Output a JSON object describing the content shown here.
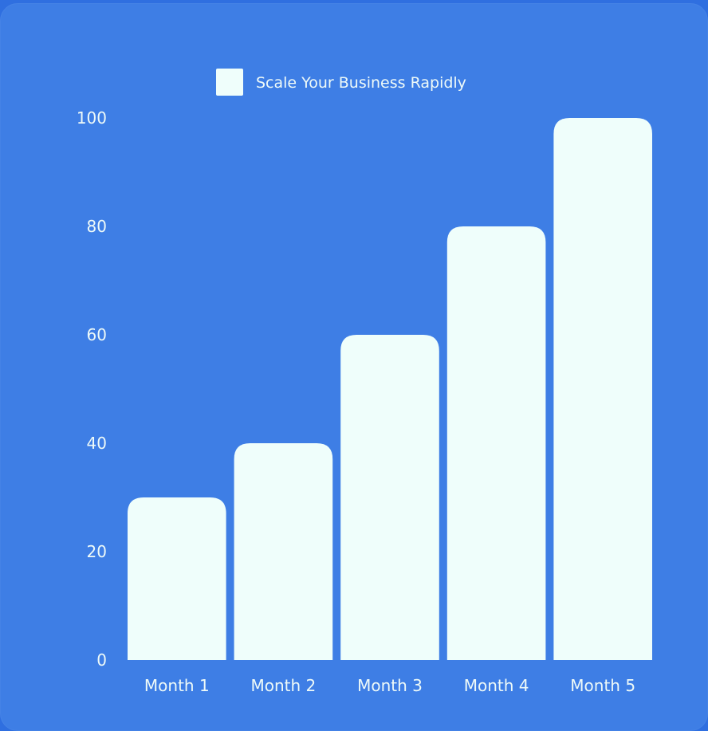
{
  "colors": {
    "page_background": "#2f6fe0",
    "card_background": "#3e7ee5",
    "bar_fill": "#effefb",
    "text": "#eefaf8"
  },
  "chart_data": {
    "type": "bar",
    "legend": {
      "label": "Scale Your Business Rapidly",
      "position": "top-center"
    },
    "categories": [
      "Month 1",
      "Month 2",
      "Month 3",
      "Month 4",
      "Month 5"
    ],
    "series": [
      {
        "name": "Scale Your Business Rapidly",
        "values": [
          30,
          40,
          60,
          80,
          100
        ]
      }
    ],
    "ylim": [
      0,
      100
    ],
    "yticks": [
      "0",
      "20",
      "40",
      "60",
      "80",
      "100"
    ],
    "grid": false
  }
}
